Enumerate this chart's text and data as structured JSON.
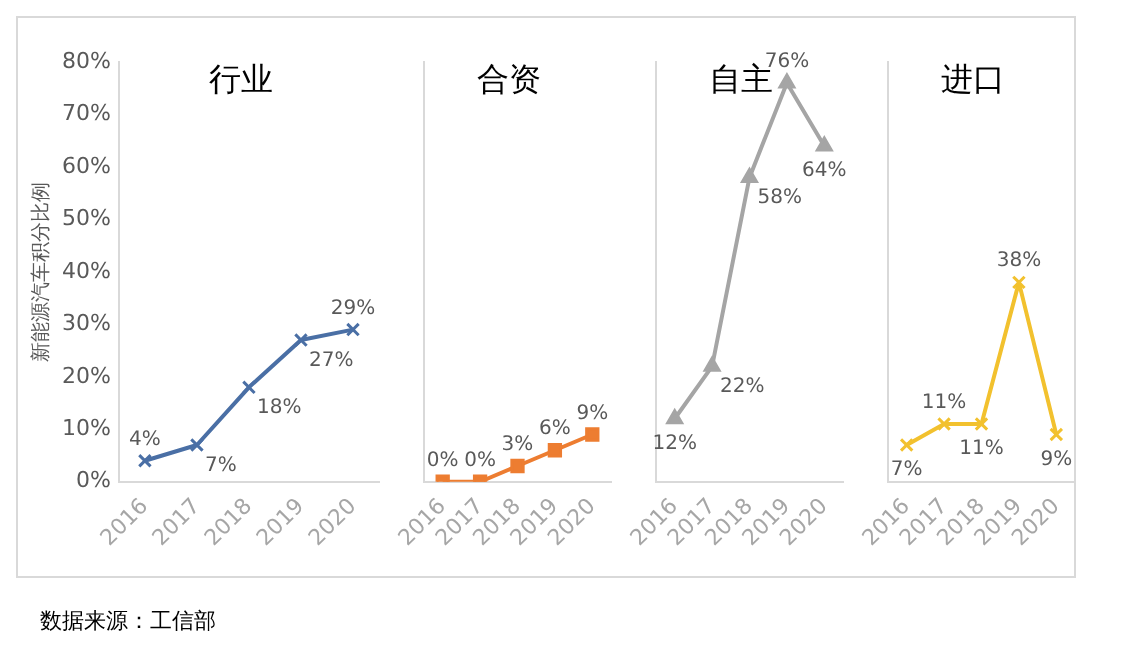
{
  "chart_data": [
    {
      "type": "line",
      "title": "行业",
      "ylabel": "新能源汽车积分比例",
      "annotations": [
        "数据来源：工信部"
      ],
      "categories": [
        "2016",
        "2017",
        "2018",
        "2019",
        "2020"
      ],
      "marker": "cross",
      "series": [
        {
          "color": "#4a6fa5",
          "values": [
            4,
            7,
            18,
            27,
            29
          ],
          "value_labels": [
            "4%",
            "7%",
            "18%",
            "27%",
            "29%"
          ]
        }
      ],
      "ylim": [
        0,
        80
      ],
      "yticks": [
        {
          "value": 0,
          "label": "0%"
        },
        {
          "value": 10,
          "label": "10%"
        },
        {
          "value": 20,
          "label": "20%"
        },
        {
          "value": 30,
          "label": "30%"
        },
        {
          "value": 40,
          "label": "40%"
        },
        {
          "value": 50,
          "label": "50%"
        },
        {
          "value": 60,
          "label": "60%"
        },
        {
          "value": 70,
          "label": "70%"
        },
        {
          "value": 80,
          "label": "80%"
        }
      ],
      "grid": false,
      "legend": false
    },
    {
      "type": "line",
      "title": "合资",
      "categories": [
        "2016",
        "2017",
        "2018",
        "2019",
        "2020"
      ],
      "marker": "square",
      "series": [
        {
          "color": "#ed7d31",
          "values": [
            0,
            0,
            3,
            6,
            9
          ],
          "value_labels": [
            "0%",
            "0%",
            "3%",
            "6%",
            "9%"
          ]
        }
      ],
      "ylim": [
        0,
        80
      ],
      "tick_labels": "x",
      "grid": false,
      "legend": false
    },
    {
      "type": "line",
      "title": "自主",
      "categories": [
        "2016",
        "2017",
        "2018",
        "2019",
        "2020"
      ],
      "marker": "triangle",
      "series": [
        {
          "color": "#a5a5a5",
          "values": [
            12,
            22,
            58,
            76,
            64
          ],
          "value_labels": [
            "12%",
            "22%",
            "58%",
            "76%",
            "64%"
          ]
        }
      ],
      "ylim": [
        0,
        80
      ],
      "tick_labels": "x",
      "grid": false,
      "legend": false
    },
    {
      "type": "line",
      "title": "进口",
      "categories": [
        "2016",
        "2017",
        "2018",
        "2019",
        "2020"
      ],
      "marker": "cross",
      "series": [
        {
          "color": "#f2c12e",
          "values": [
            7,
            11,
            11,
            38,
            9
          ],
          "value_labels": [
            "7%",
            "11%",
            "11%",
            "38%",
            "9%"
          ]
        }
      ],
      "ylim": [
        0,
        80
      ],
      "tick_labels": "x",
      "grid": false,
      "legend": false
    }
  ]
}
